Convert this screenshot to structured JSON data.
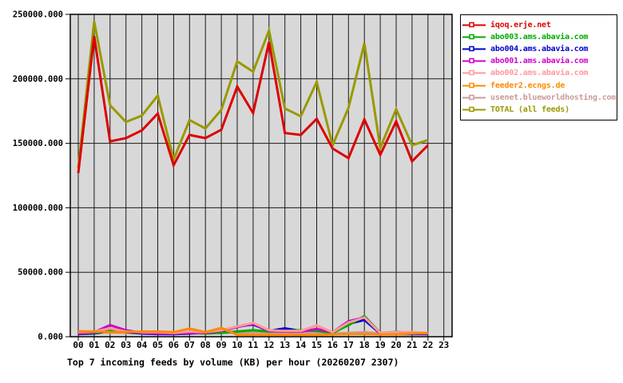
{
  "chart_data": {
    "type": "line",
    "title": "Top 7 incoming feeds by volume (KB) per hour (20260207 2307)",
    "ylabel": "",
    "xlabel": "",
    "ylim": [
      0,
      250000
    ],
    "grid": true,
    "plot_bg": "#d8d8d8",
    "grid_color": "#1a1a1a",
    "border_color": "#000000",
    "legend_position": "outside-top-right",
    "y_tick_labels": [
      "0.000",
      "50000.000",
      "100000.000",
      "150000.000",
      "200000.000",
      "250000.000"
    ],
    "y_tick_values": [
      0,
      50000,
      100000,
      150000,
      200000,
      250000
    ],
    "x_tick_labels": [
      "00",
      "01",
      "02",
      "03",
      "04",
      "05",
      "06",
      "07",
      "08",
      "09",
      "10",
      "11",
      "12",
      "13",
      "14",
      "15",
      "16",
      "17",
      "18",
      "19",
      "20",
      "21",
      "22",
      "23"
    ],
    "x_hours_with_data": [
      0,
      1,
      2,
      3,
      4,
      5,
      6,
      7,
      8,
      9,
      10,
      11,
      12,
      13,
      14,
      15,
      16,
      17,
      18,
      19,
      20,
      21,
      22
    ],
    "series": [
      {
        "name": "iqoq.erje.net",
        "color": "#dd0000",
        "values": [
          127000,
          233000,
          151500,
          154000,
          160000,
          173000,
          133000,
          156500,
          154000,
          160500,
          194000,
          173500,
          228500,
          158000,
          156500,
          169000,
          146000,
          138500,
          168500,
          141000,
          167000,
          136000,
          148500
        ]
      },
      {
        "name": "abo003.ams.abavia.com",
        "color": "#00aa00",
        "values": [
          2500,
          3000,
          5000,
          4500,
          3000,
          2500,
          2500,
          3000,
          2500,
          3000,
          4000,
          5000,
          4000,
          4500,
          5000,
          4500,
          3000,
          9000,
          16000,
          3000,
          3700,
          3000,
          2500
        ]
      },
      {
        "name": "abo004.ams.abavia.com",
        "color": "#0000cc",
        "values": [
          2000,
          2500,
          4500,
          3500,
          2500,
          2000,
          2000,
          2500,
          3000,
          4000,
          8000,
          9500,
          4500,
          6500,
          4500,
          5000,
          3000,
          10000,
          13000,
          2500,
          2000,
          2000,
          2000
        ]
      },
      {
        "name": "abo001.ams.abavia.com",
        "color": "#cc00cc",
        "values": [
          2500,
          3500,
          9000,
          5000,
          3000,
          2500,
          2500,
          3000,
          3000,
          4500,
          7500,
          10000,
          4500,
          4000,
          4000,
          6000,
          3500,
          12000,
          15000,
          2500,
          2500,
          2500,
          2500
        ]
      },
      {
        "name": "abo002.ams.abavia.com",
        "color": "#ff9999",
        "values": [
          3500,
          4000,
          6500,
          4000,
          3500,
          3500,
          3000,
          4000,
          3500,
          5000,
          8000,
          10700,
          5000,
          4500,
          4500,
          8700,
          3500,
          11000,
          15000,
          3000,
          3500,
          3500,
          3000
        ]
      },
      {
        "name": "feeder2.ecngs.de",
        "color": "#ff8800",
        "values": [
          4300,
          4000,
          3500,
          3500,
          4000,
          4000,
          3500,
          6300,
          3500,
          6800,
          1500,
          1500,
          1500,
          1500,
          1500,
          1500,
          1800,
          2000,
          2000,
          1800,
          1800,
          2500,
          2800
        ]
      },
      {
        "name": "usenet.blueworldhosting.com",
        "color": "#cc9999",
        "values": [
          2800,
          3000,
          3200,
          3000,
          2800,
          2800,
          2500,
          3000,
          2800,
          3200,
          3000,
          3500,
          3200,
          3000,
          3000,
          3500,
          2500,
          3000,
          3500,
          2500,
          2800,
          2800,
          2800
        ]
      },
      {
        "name": "TOTAL (all feeds)",
        "color": "#999900",
        "values": [
          131000,
          244500,
          179500,
          166500,
          171500,
          187000,
          137500,
          168000,
          161500,
          176000,
          213500,
          205500,
          237500,
          177000,
          171000,
          197500,
          148500,
          177500,
          227500,
          146500,
          176500,
          148500,
          152500
        ]
      }
    ],
    "draw_order": [
      6,
      2,
      1,
      3,
      4,
      5,
      7,
      0
    ]
  }
}
